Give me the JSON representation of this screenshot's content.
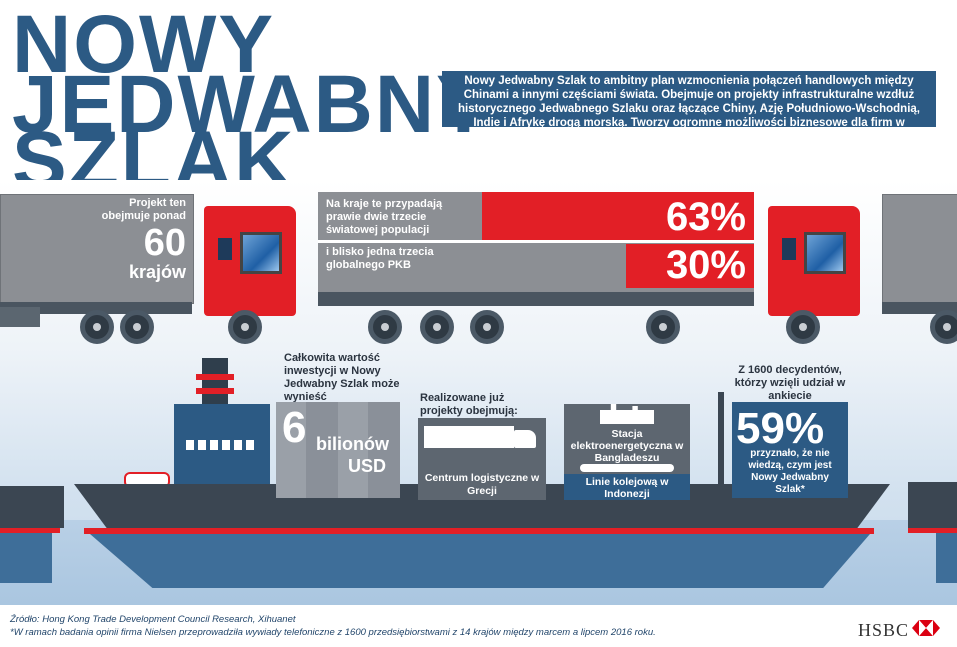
{
  "title": {
    "line1": "NOWY",
    "line2": "JEDWABNY",
    "line3": "SZLAK"
  },
  "intro_text": "Nowy Jedwabny Szlak to ambitny plan wzmocnienia połączeń handlowych między Chinami a innymi częściami świata. Obejmuje on projekty infrastrukturalne wzdłuż historycznego Jedwabnego Szlaku oraz łączące Chiny, Azję Południowo-Wschodnią, Indie i Afrykę drogą morską. Tworzy ogromne możliwości biznesowe dla firm w nadchodzących dziesięcioleciach.",
  "truck1": {
    "label": "Projekt ten obejmuje ponad",
    "number": "60",
    "unit": "krajów"
  },
  "truck2": {
    "row1_label": "Na kraje te przypadają prawie dwie trzecie światowej populacji",
    "row1_value": "63%",
    "row1_fraction": 0.63,
    "row2_label": "i blisko jedna trzecia globalnego PKB",
    "row2_value": "30%",
    "row2_fraction": 0.3
  },
  "investment": {
    "label": "Całkowita wartość inwestycji w Nowy Jedwabny Szlak może wynieść",
    "number": "6",
    "unit1": "bilionów",
    "unit2": "USD"
  },
  "projects": {
    "label": "Realizowane już projekty obejmują:",
    "item1": "Centrum logistyczne w Grecji",
    "item2_top": "Stacja elektroenergetyczna w Bangladeszu",
    "item2_bottom": "Linie kolejową w Indonezji"
  },
  "survey": {
    "label": "Z 1600 decydentów, którzy wzięli udział w ankiecie",
    "value": "59%",
    "caption": "przyznało, że nie wiedzą, czym jest Nowy Jedwabny Szlak*"
  },
  "footer": {
    "source": "Źródło: Hong Kong Trade Development Council Research, Xihuanet",
    "note": "*W ramach badania opinii firma Nielsen przeprowadziła wywiady telefoniczne z 1600 przedsiębiorstwami z 14 krajów między marcem a lipcem 2016 roku."
  },
  "brand": {
    "name": "HSBC"
  },
  "colors": {
    "navy": "#2c5a84",
    "red": "#e21f26",
    "gray": "#8c8f94",
    "hull": "#3b4652"
  }
}
